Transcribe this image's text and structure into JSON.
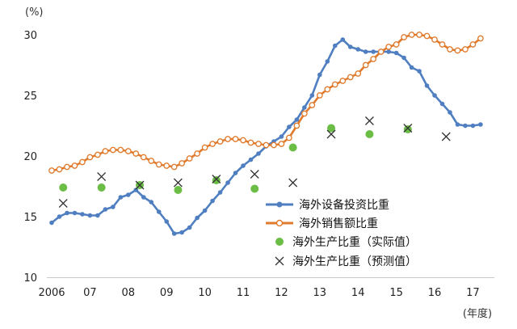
{
  "chart_data": {
    "type": "line",
    "title": "",
    "y_unit": "(%)",
    "x_unit": "(年度)",
    "ylim": [
      10,
      30
    ],
    "yticks": [
      10,
      15,
      20,
      25,
      30
    ],
    "xlim": [
      2006,
      2017.35
    ],
    "xticks": [
      {
        "value": 2006,
        "label": "2006"
      },
      {
        "value": 2007,
        "label": "07"
      },
      {
        "value": 2008,
        "label": "08"
      },
      {
        "value": 2009,
        "label": "09"
      },
      {
        "value": 2010,
        "label": "10"
      },
      {
        "value": 2011,
        "label": "11"
      },
      {
        "value": 2012,
        "label": "12"
      },
      {
        "value": 2013,
        "label": "13"
      },
      {
        "value": 2014,
        "label": "14"
      },
      {
        "value": 2015,
        "label": "15"
      },
      {
        "value": 2016,
        "label": "16"
      },
      {
        "value": 2017,
        "label": "17"
      }
    ],
    "grid": false,
    "legend_position": "inside bottom-center",
    "series": [
      {
        "name": "海外设备投资比重",
        "style": "line-filled-dot",
        "color": "#4f7fc0",
        "x": [
          2006.0,
          2006.2,
          2006.4,
          2006.6,
          2006.8,
          2007.0,
          2007.2,
          2007.4,
          2007.6,
          2007.8,
          2008.0,
          2008.2,
          2008.4,
          2008.6,
          2008.8,
          2009.0,
          2009.2,
          2009.4,
          2009.6,
          2009.8,
          2010.0,
          2010.2,
          2010.4,
          2010.6,
          2010.8,
          2011.0,
          2011.2,
          2011.4,
          2011.6,
          2011.8,
          2012.0,
          2012.2,
          2012.4,
          2012.6,
          2012.8,
          2013.0,
          2013.2,
          2013.4,
          2013.6,
          2013.8,
          2014.0,
          2014.2,
          2014.4,
          2014.6,
          2014.8,
          2015.0,
          2015.2,
          2015.4,
          2015.6,
          2015.8,
          2016.0,
          2016.2,
          2016.4,
          2016.6,
          2016.8,
          2017.0,
          2017.2
        ],
        "values": [
          14.5,
          15.0,
          15.3,
          15.3,
          15.2,
          15.1,
          15.1,
          15.6,
          15.8,
          16.6,
          16.8,
          17.2,
          16.6,
          16.2,
          15.4,
          14.6,
          13.6,
          13.7,
          14.1,
          14.9,
          15.5,
          16.3,
          17.0,
          17.8,
          18.6,
          19.2,
          19.7,
          20.2,
          20.8,
          21.2,
          21.6,
          22.4,
          23.0,
          24.0,
          25.0,
          26.7,
          27.8,
          29.1,
          29.6,
          29.0,
          28.8,
          28.6,
          28.6,
          28.6,
          28.6,
          28.5,
          28.1,
          27.3,
          27.0,
          25.8,
          25.0,
          24.3,
          23.6,
          22.6,
          22.5,
          22.5,
          22.6
        ]
      },
      {
        "name": "海外销售额比重",
        "style": "line-hollow-dot",
        "color": "#e07a2c",
        "x": [
          2006.0,
          2006.2,
          2006.4,
          2006.6,
          2006.8,
          2007.0,
          2007.2,
          2007.4,
          2007.6,
          2007.8,
          2008.0,
          2008.2,
          2008.4,
          2008.6,
          2008.8,
          2009.0,
          2009.2,
          2009.4,
          2009.6,
          2009.8,
          2010.0,
          2010.2,
          2010.4,
          2010.6,
          2010.8,
          2011.0,
          2011.2,
          2011.4,
          2011.6,
          2011.8,
          2012.0,
          2012.2,
          2012.4,
          2012.6,
          2012.8,
          2013.0,
          2013.2,
          2013.4,
          2013.6,
          2013.8,
          2014.0,
          2014.2,
          2014.4,
          2014.6,
          2014.8,
          2015.0,
          2015.2,
          2015.4,
          2015.6,
          2015.8,
          2016.0,
          2016.2,
          2016.4,
          2016.6,
          2016.8,
          2017.0,
          2017.2
        ],
        "values": [
          18.8,
          18.9,
          19.1,
          19.2,
          19.5,
          19.9,
          20.1,
          20.4,
          20.5,
          20.5,
          20.4,
          20.2,
          19.9,
          19.6,
          19.3,
          19.2,
          19.1,
          19.4,
          19.8,
          20.2,
          20.7,
          21.0,
          21.2,
          21.4,
          21.4,
          21.3,
          21.1,
          21.0,
          20.9,
          20.9,
          21.0,
          21.5,
          22.5,
          23.5,
          24.2,
          25.0,
          25.5,
          25.9,
          26.2,
          26.5,
          26.8,
          27.5,
          28.0,
          28.6,
          29.0,
          29.2,
          29.8,
          30.0,
          30.0,
          29.9,
          29.6,
          29.2,
          28.8,
          28.7,
          28.8,
          29.2,
          29.7
        ]
      },
      {
        "name": "海外生产比重（实际值）",
        "style": "dot",
        "color": "#6bbd45",
        "x": [
          2006.3,
          2007.3,
          2008.3,
          2009.3,
          2010.3,
          2011.3,
          2012.3,
          2013.3,
          2014.3,
          2015.3
        ],
        "values": [
          17.4,
          17.4,
          17.6,
          17.2,
          18.0,
          17.3,
          20.7,
          22.3,
          21.8,
          22.2
        ]
      },
      {
        "name": "海外生产比重（预测值）",
        "style": "cross",
        "color": "#333333",
        "x": [
          2006.3,
          2007.3,
          2008.3,
          2009.3,
          2010.3,
          2011.3,
          2012.3,
          2013.3,
          2014.3,
          2015.3,
          2016.3
        ],
        "values": [
          16.1,
          18.3,
          17.6,
          17.8,
          18.1,
          18.5,
          17.8,
          21.8,
          22.9,
          22.3,
          21.6
        ]
      }
    ]
  }
}
